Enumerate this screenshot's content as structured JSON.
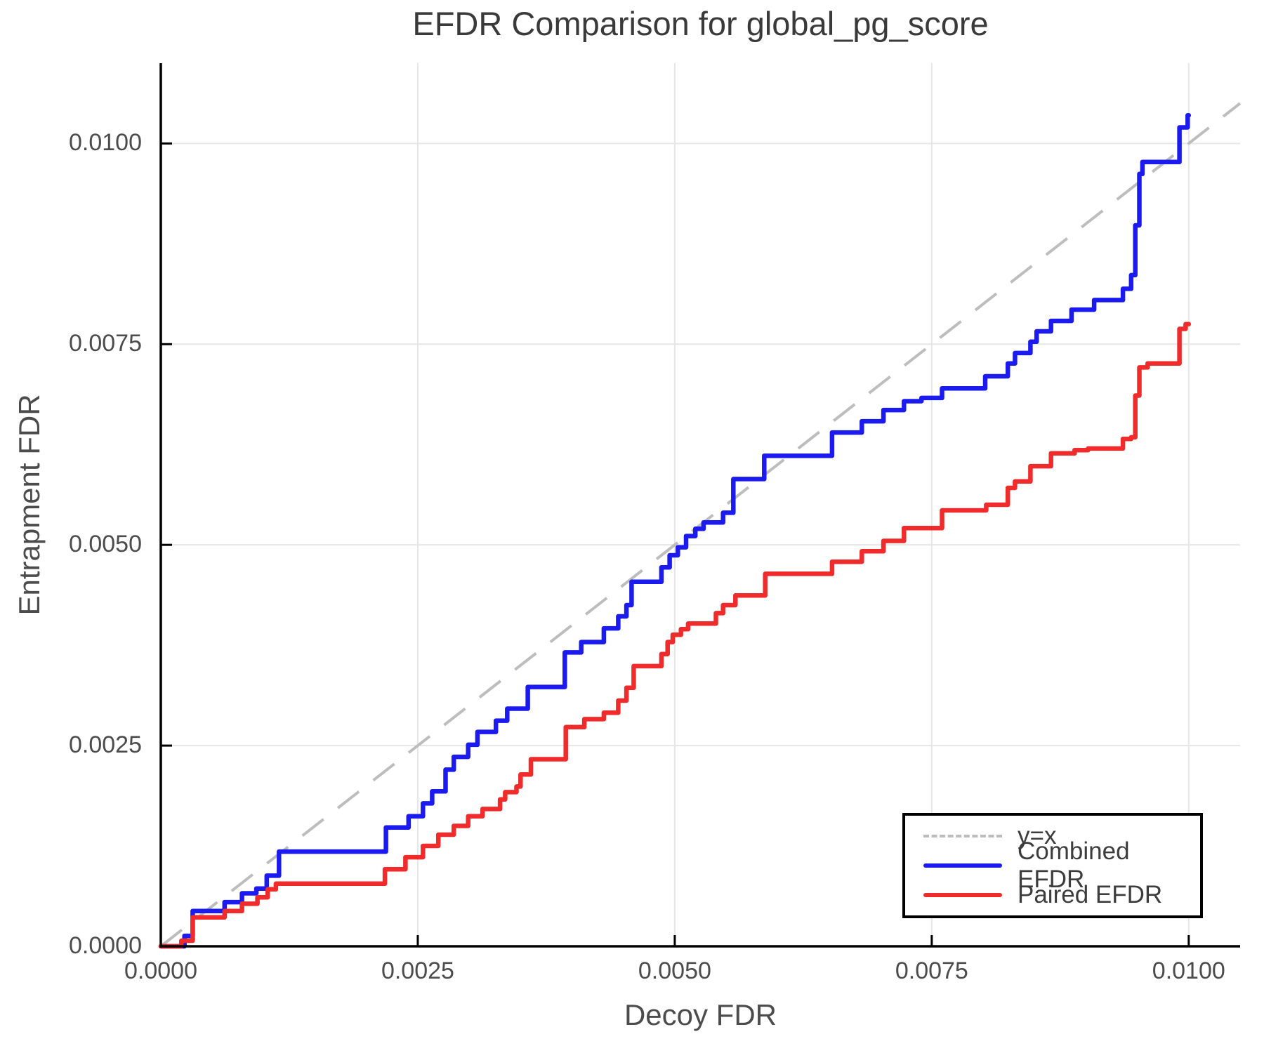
{
  "title": "EFDR Comparison for global_pg_score",
  "xlabel": "Decoy FDR",
  "ylabel": "Entrapment FDR",
  "legend": {
    "entries": [
      {
        "label": "y=x",
        "color": "#bdbdbd",
        "dash": true
      },
      {
        "label": "Combined EFDR",
        "color": "#1b1bef",
        "dash": false
      },
      {
        "label": "Paired EFDR",
        "color": "#ef2b2b",
        "dash": false
      }
    ]
  },
  "colors": {
    "axis": "#000000",
    "grid": "#e6e6e6",
    "reference_line": "#bdbdbd",
    "combined_series": "#1b1bef",
    "paired_series": "#ef2b2b",
    "title_text": "#3a3a3a",
    "tick_text": "#4c4c4c"
  },
  "chart_data": {
    "type": "line",
    "title": "EFDR Comparison for global_pg_score",
    "xlabel": "Decoy FDR",
    "ylabel": "Entrapment FDR",
    "xlim": [
      0,
      0.0105
    ],
    "ylim": [
      0,
      0.011
    ],
    "grid": true,
    "legend_position": "bottom-right",
    "x_tick_labels": [
      "0.0000",
      "0.0025",
      "0.0050",
      "0.0075",
      "0.0100"
    ],
    "x_tick_values": [
      0,
      0.0025,
      0.005,
      0.0075,
      0.01
    ],
    "y_tick_labels": [
      "0.0000",
      "0.0025",
      "0.0050",
      "0.0075",
      "0.0100"
    ],
    "y_tick_values": [
      0,
      0.0025,
      0.005,
      0.0075,
      0.01
    ],
    "reference_line": {
      "name": "y=x",
      "style": "dashed",
      "color": "#bdbdbd",
      "from": [
        0,
        0
      ],
      "to": [
        0.0105,
        0.0105
      ]
    },
    "series": [
      {
        "name": "Combined EFDR",
        "color": "#1b1bef",
        "style": "step-post",
        "points": [
          [
            0.0,
            0.0
          ],
          [
            0.00023,
            0.00013
          ],
          [
            0.00031,
            0.00044
          ],
          [
            0.00062,
            0.00055
          ],
          [
            0.00079,
            0.00066
          ],
          [
            0.00093,
            0.00072
          ],
          [
            0.00103,
            0.00088
          ],
          [
            0.00115,
            0.00118
          ],
          [
            0.00219,
            0.00148
          ],
          [
            0.00241,
            0.00162
          ],
          [
            0.00255,
            0.00178
          ],
          [
            0.00264,
            0.00193
          ],
          [
            0.00277,
            0.0022
          ],
          [
            0.00285,
            0.00236
          ],
          [
            0.00299,
            0.00251
          ],
          [
            0.00308,
            0.00267
          ],
          [
            0.00326,
            0.00281
          ],
          [
            0.00337,
            0.00296
          ],
          [
            0.00357,
            0.00323
          ],
          [
            0.00393,
            0.00366
          ],
          [
            0.00409,
            0.00379
          ],
          [
            0.00431,
            0.00396
          ],
          [
            0.00445,
            0.00411
          ],
          [
            0.00453,
            0.00425
          ],
          [
            0.00458,
            0.00454
          ],
          [
            0.00487,
            0.00472
          ],
          [
            0.00495,
            0.00487
          ],
          [
            0.00503,
            0.00497
          ],
          [
            0.00511,
            0.00511
          ],
          [
            0.0052,
            0.0052
          ],
          [
            0.00528,
            0.00528
          ],
          [
            0.00547,
            0.0054
          ],
          [
            0.00557,
            0.00582
          ],
          [
            0.00587,
            0.00611
          ],
          [
            0.00653,
            0.0064
          ],
          [
            0.00682,
            0.00654
          ],
          [
            0.00703,
            0.00668
          ],
          [
            0.00723,
            0.00679
          ],
          [
            0.0074,
            0.00683
          ],
          [
            0.0076,
            0.00695
          ],
          [
            0.00802,
            0.0071
          ],
          [
            0.00824,
            0.00726
          ],
          [
            0.00831,
            0.00739
          ],
          [
            0.00846,
            0.00753
          ],
          [
            0.00852,
            0.00766
          ],
          [
            0.00866,
            0.00779
          ],
          [
            0.00886,
            0.00793
          ],
          [
            0.00908,
            0.00805
          ],
          [
            0.00936,
            0.00819
          ],
          [
            0.00944,
            0.00836
          ],
          [
            0.00948,
            0.00898
          ],
          [
            0.00952,
            0.00962
          ],
          [
            0.00955,
            0.00977
          ],
          [
            0.00991,
            0.0102
          ],
          [
            0.00999,
            0.01035
          ],
          [
            0.01,
            0.01035
          ]
        ]
      },
      {
        "name": "Paired EFDR",
        "color": "#ef2b2b",
        "style": "step-post",
        "points": [
          [
            0.0,
            0.0
          ],
          [
            0.0002,
            7e-05
          ],
          [
            0.00031,
            0.00036
          ],
          [
            0.00062,
            0.00044
          ],
          [
            0.00079,
            0.00053
          ],
          [
            0.00094,
            0.00061
          ],
          [
            0.00104,
            0.00071
          ],
          [
            0.00112,
            0.00078
          ],
          [
            0.00218,
            0.00096
          ],
          [
            0.00238,
            0.00111
          ],
          [
            0.00255,
            0.00125
          ],
          [
            0.0027,
            0.00139
          ],
          [
            0.00285,
            0.0015
          ],
          [
            0.00299,
            0.00162
          ],
          [
            0.00313,
            0.00171
          ],
          [
            0.0033,
            0.00183
          ],
          [
            0.00335,
            0.00192
          ],
          [
            0.00346,
            0.00199
          ],
          [
            0.0035,
            0.00214
          ],
          [
            0.0036,
            0.00233
          ],
          [
            0.00394,
            0.00273
          ],
          [
            0.00412,
            0.00283
          ],
          [
            0.00431,
            0.00291
          ],
          [
            0.00445,
            0.00306
          ],
          [
            0.00453,
            0.00322
          ],
          [
            0.0046,
            0.00349
          ],
          [
            0.00487,
            0.00364
          ],
          [
            0.00493,
            0.00379
          ],
          [
            0.00498,
            0.00388
          ],
          [
            0.00506,
            0.00395
          ],
          [
            0.00513,
            0.00402
          ],
          [
            0.0054,
            0.00415
          ],
          [
            0.00547,
            0.00425
          ],
          [
            0.00559,
            0.00437
          ],
          [
            0.00588,
            0.00464
          ],
          [
            0.00653,
            0.00479
          ],
          [
            0.00682,
            0.00492
          ],
          [
            0.00703,
            0.00505
          ],
          [
            0.00723,
            0.00521
          ],
          [
            0.0076,
            0.00543
          ],
          [
            0.00803,
            0.0055
          ],
          [
            0.00824,
            0.00571
          ],
          [
            0.00831,
            0.00579
          ],
          [
            0.00846,
            0.00598
          ],
          [
            0.00866,
            0.00614
          ],
          [
            0.00889,
            0.00618
          ],
          [
            0.00902,
            0.0062
          ],
          [
            0.00936,
            0.00632
          ],
          [
            0.00944,
            0.00634
          ],
          [
            0.00948,
            0.00686
          ],
          [
            0.00952,
            0.00721
          ],
          [
            0.0096,
            0.00726
          ],
          [
            0.00991,
            0.00769
          ],
          [
            0.00997,
            0.00775
          ],
          [
            0.01,
            0.00775
          ]
        ]
      }
    ]
  }
}
